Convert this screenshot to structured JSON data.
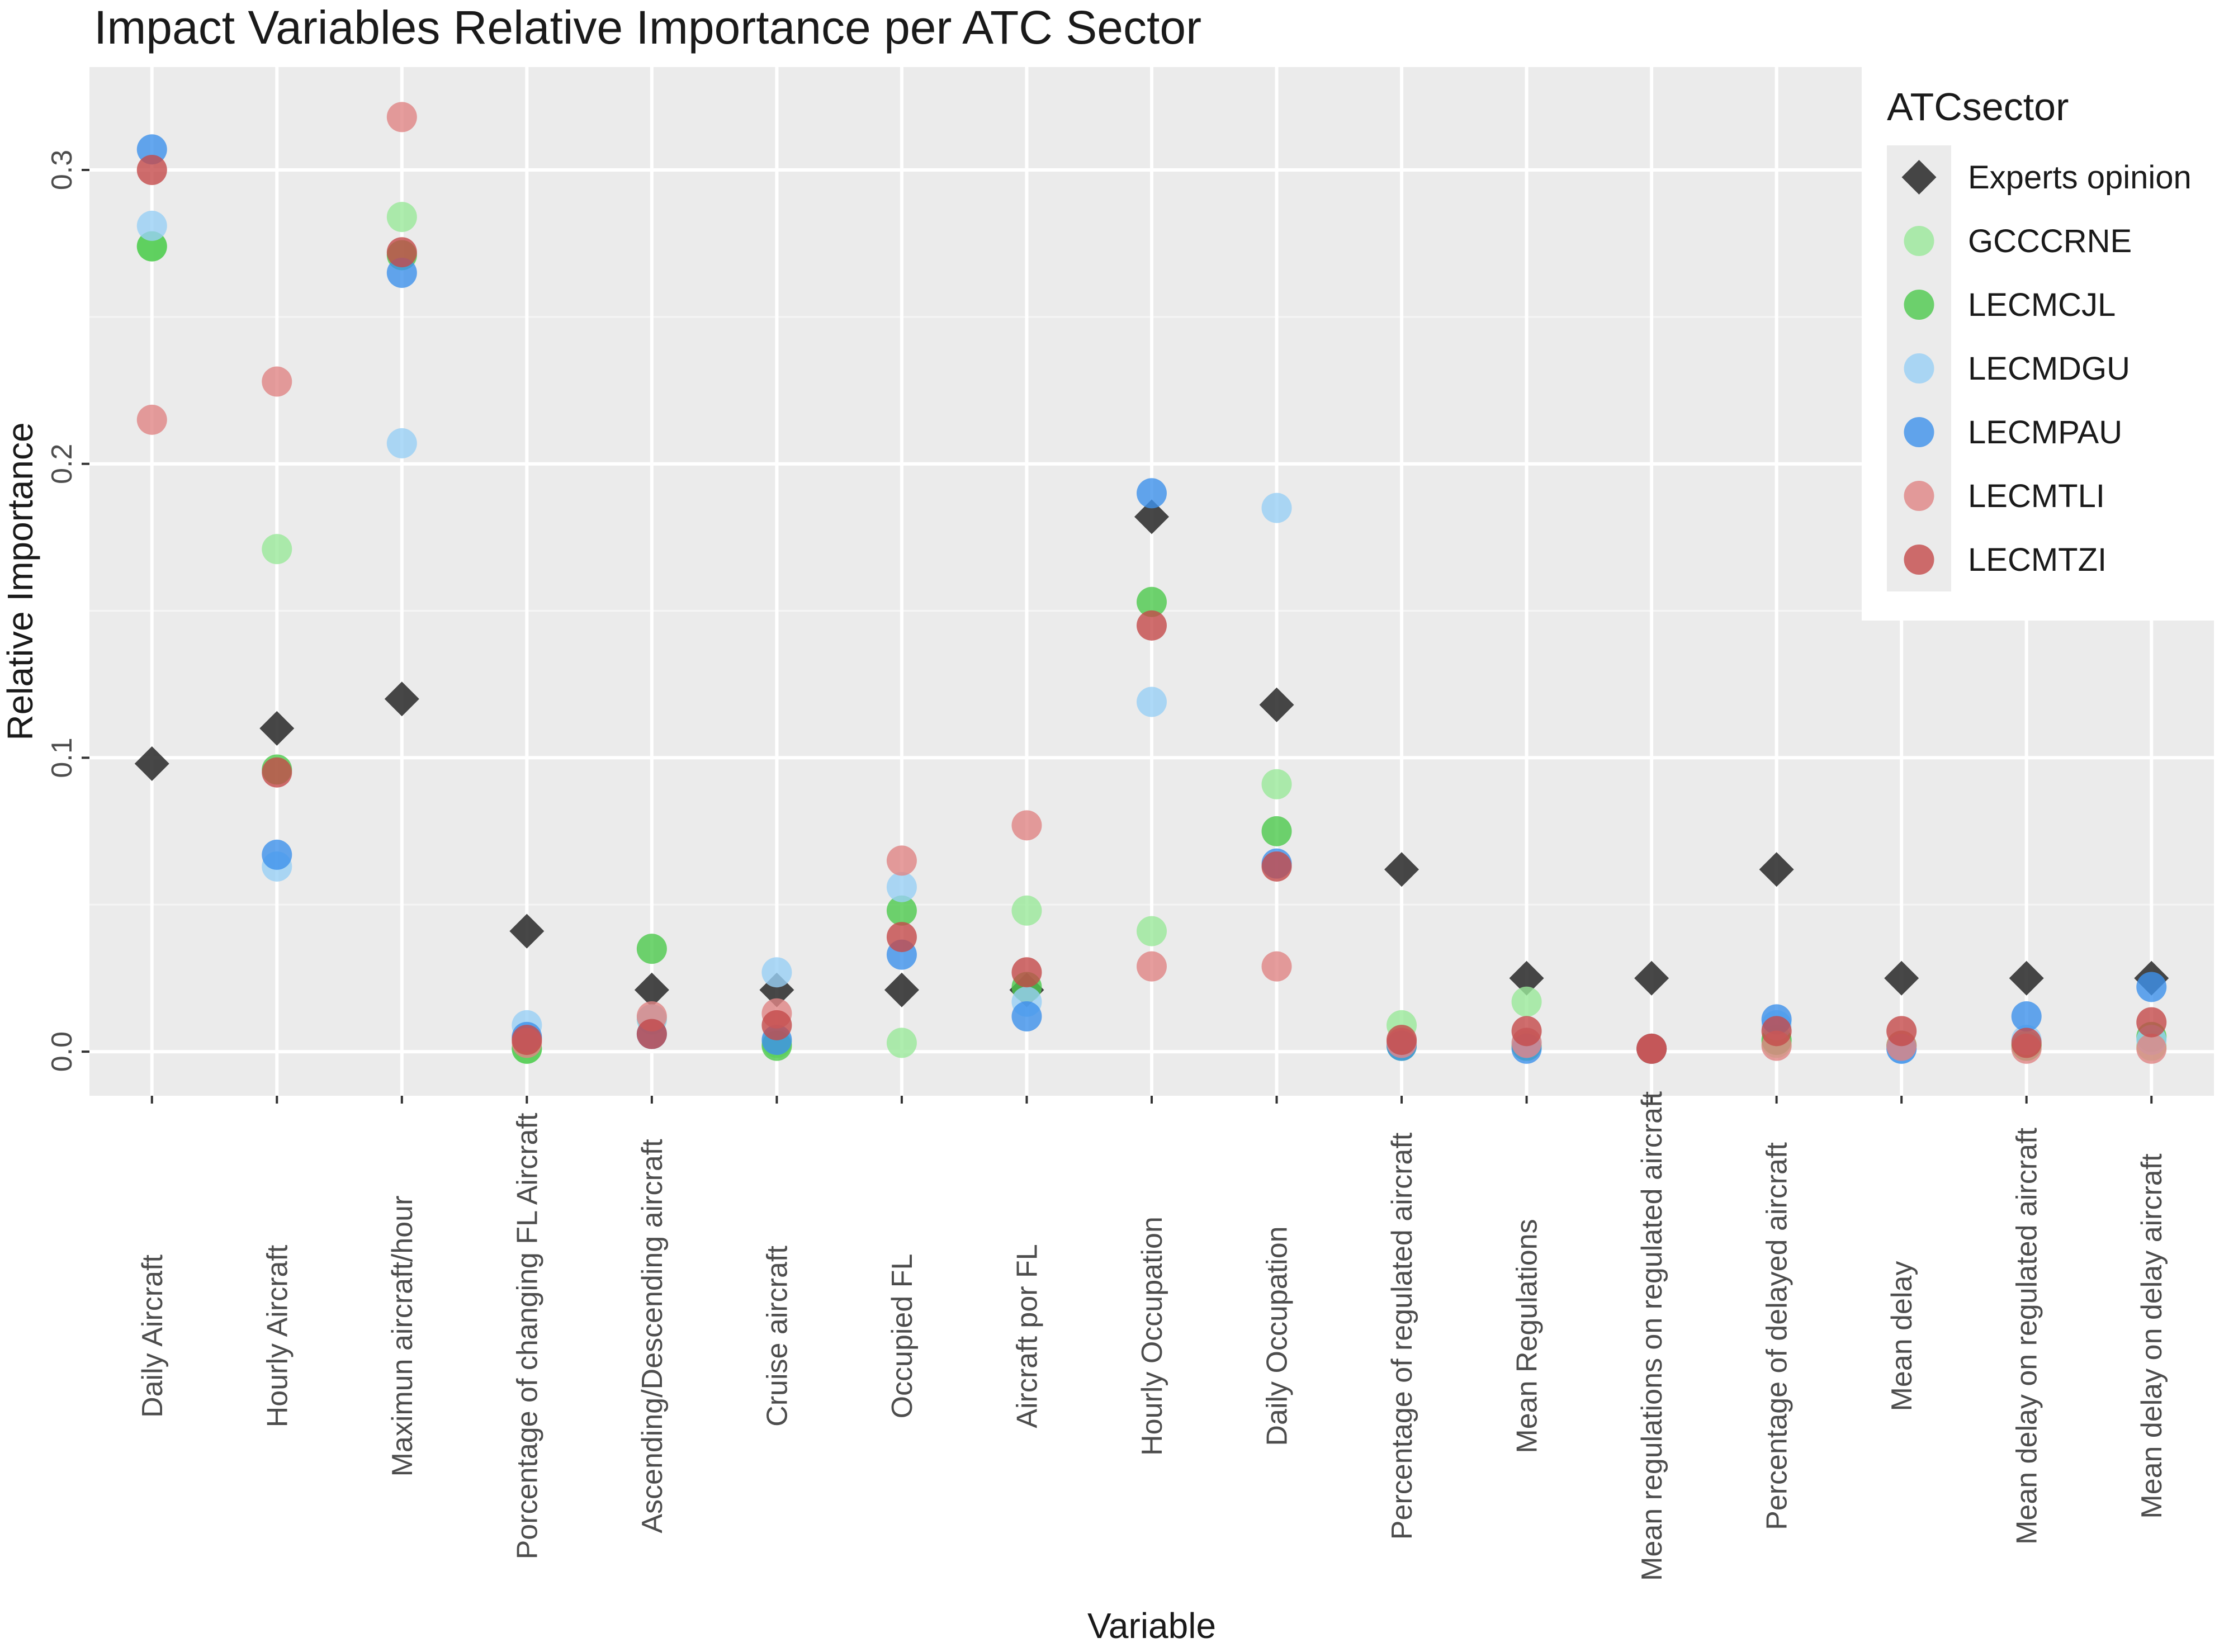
{
  "chart_data": {
    "type": "scatter",
    "title": "Impact Variables Relative Importance per ATC Sector",
    "xlabel": "Variable",
    "ylabel": "Relative Importance",
    "ylim": [
      -0.015,
      0.335
    ],
    "yticks": [
      0.0,
      0.1,
      0.2,
      0.3
    ],
    "ytick_labels": [
      "0.0",
      "0.1",
      "0.2",
      "0.3"
    ],
    "grid": true,
    "legend": {
      "title": "ATCsector",
      "position": "top-right"
    },
    "categories": [
      "Daily Aircraft",
      "Hourly Aircraft",
      "Maximun aircraft/hour",
      "Porcentage of changing FL Aircraft",
      "Ascending/Descending aircraft",
      "Cruise aircraft",
      "Occupied FL",
      "Aircraft por FL",
      "Hourly Occupation",
      "Daily Occupation",
      "Percentage of regulated aircraft",
      "Mean Regulations",
      "Mean regulations on regulated aircraft",
      "Percentage of delayed aircraft",
      "Mean delay",
      "Mean delay on regulated aircraft",
      "Mean delay on delay aircraft"
    ],
    "series": [
      {
        "name": "Experts opinion",
        "color": "#333333",
        "shape": "diamond",
        "values": [
          0.098,
          0.11,
          0.12,
          0.041,
          0.021,
          0.021,
          0.021,
          0.021,
          0.182,
          0.118,
          0.062,
          0.025,
          0.025,
          0.062,
          0.025,
          0.025,
          0.025
        ]
      },
      {
        "name": "GCCCRNE",
        "color": "#9ae89a",
        "shape": "circle",
        "values": [
          0.274,
          0.171,
          0.284,
          0.001,
          0.011,
          0.003,
          0.003,
          0.048,
          0.041,
          0.091,
          0.009,
          0.017,
          0.001,
          0.003,
          0.002,
          0.002,
          0.002
        ]
      },
      {
        "name": "LECMCJL",
        "color": "#4cc94c",
        "shape": "circle",
        "values": [
          0.274,
          0.096,
          0.271,
          0.001,
          0.035,
          0.002,
          0.048,
          0.022,
          0.153,
          0.075,
          0.002,
          0.002,
          0.001,
          0.004,
          0.002,
          0.002,
          0.005
        ]
      },
      {
        "name": "LECMDGU",
        "color": "#99cff5",
        "shape": "circle",
        "values": [
          0.281,
          0.063,
          0.207,
          0.009,
          0.011,
          0.027,
          0.056,
          0.017,
          0.119,
          0.185,
          0.003,
          0.003,
          0.001,
          0.009,
          0.001,
          0.004,
          0.004
        ]
      },
      {
        "name": "LECMPAU",
        "color": "#3d91eb",
        "shape": "circle",
        "values": [
          0.307,
          0.067,
          0.265,
          0.005,
          0.006,
          0.004,
          0.033,
          0.012,
          0.19,
          0.064,
          0.002,
          0.001,
          0.001,
          0.011,
          0.001,
          0.012,
          0.022
        ]
      },
      {
        "name": "LECMTLI",
        "color": "#e08585",
        "shape": "circle",
        "values": [
          0.215,
          0.228,
          0.318,
          0.003,
          0.012,
          0.013,
          0.065,
          0.077,
          0.029,
          0.029,
          0.003,
          0.003,
          0.001,
          0.002,
          0.002,
          0.001,
          0.001
        ]
      },
      {
        "name": "LECMTZI",
        "color": "#c44a4a",
        "shape": "circle",
        "values": [
          0.3,
          0.095,
          0.272,
          0.004,
          0.006,
          0.009,
          0.039,
          0.027,
          0.145,
          0.063,
          0.004,
          0.007,
          0.001,
          0.007,
          0.007,
          0.003,
          0.01
        ]
      }
    ]
  }
}
